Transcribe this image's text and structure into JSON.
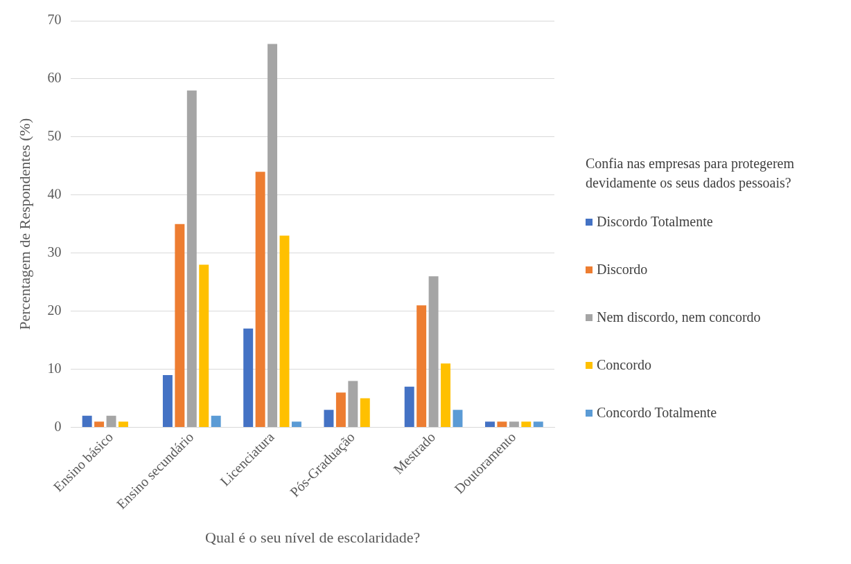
{
  "chart_data": {
    "type": "bar",
    "xlabel": "Qual é o seu nível de escolaridade?",
    "ylabel": "Percentagem de Respondentes (%)",
    "legend_title": "Confia nas empresas para protegerem devidamente os seus dados pessoais?",
    "categories": [
      "Ensino básico",
      "Ensino secundário",
      "Licenciatura",
      "Pós-Graduação",
      "Mestrado",
      "Doutoramento"
    ],
    "series": [
      {
        "name": "Discordo Totalmente",
        "color": "#4472c4",
        "values": [
          2,
          9,
          17,
          3,
          7,
          1
        ]
      },
      {
        "name": "Discordo",
        "color": "#ed7d31",
        "values": [
          1,
          35,
          44,
          6,
          21,
          1
        ]
      },
      {
        "name": "Nem discordo, nem concordo",
        "color": "#a5a5a5",
        "values": [
          2,
          58,
          66,
          8,
          26,
          1
        ]
      },
      {
        "name": "Concordo",
        "color": "#ffc000",
        "values": [
          1,
          28,
          33,
          5,
          11,
          1
        ]
      },
      {
        "name": "Concordo Totalmente",
        "color": "#5b9bd5",
        "values": [
          0,
          2,
          1,
          0,
          3,
          1
        ]
      }
    ],
    "ylim": [
      0,
      70
    ],
    "yticks": [
      0,
      10,
      20,
      30,
      40,
      50,
      60,
      70
    ],
    "grid": "y",
    "legend": "right"
  }
}
